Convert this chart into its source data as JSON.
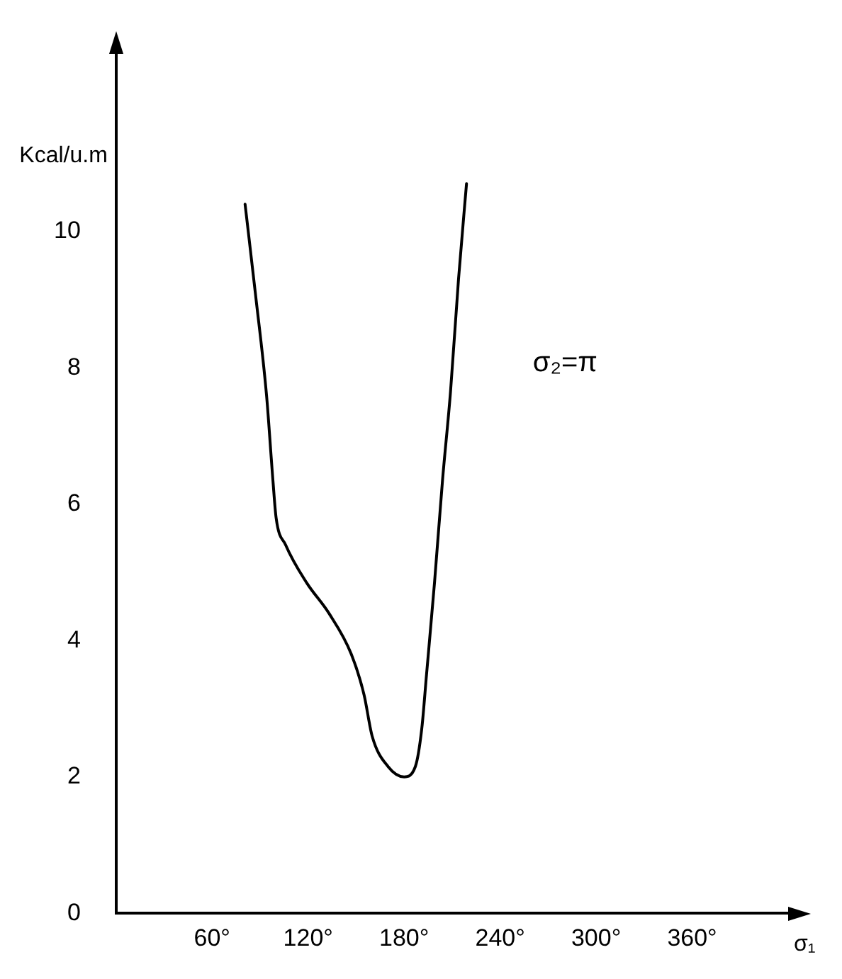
{
  "chart_data": {
    "type": "line",
    "xlabel": "σ₁",
    "ylabel": "Kcal/u.m",
    "annotations": [
      "σ₂=π"
    ],
    "xlim": [
      0,
      420
    ],
    "ylim": [
      0,
      12.6
    ],
    "xticks": [
      {
        "value": 60,
        "label": "60°"
      },
      {
        "value": 120,
        "label": "120°"
      },
      {
        "value": 180,
        "label": "180°"
      },
      {
        "value": 240,
        "label": "240°"
      },
      {
        "value": 300,
        "label": "300°"
      },
      {
        "value": 360,
        "label": "360°"
      }
    ],
    "yticks": [
      0,
      2,
      4,
      6,
      8,
      10
    ],
    "grid": false,
    "legend": false,
    "marker": "none",
    "line_style": "solid",
    "series": [
      {
        "color": "#000000",
        "x": [
          80.6,
          87,
          94,
          98,
          100,
          106,
          119,
          133,
          147,
          155,
          160,
          170,
          180,
          187,
          191,
          194,
          199,
          204,
          209,
          214,
          219
        ],
        "values": [
          10.4,
          9.1,
          7.6,
          6.35,
          5.8,
          5.4,
          4.85,
          4.4,
          3.8,
          3.2,
          2.6,
          2.15,
          2.0,
          2.15,
          2.7,
          3.5,
          4.85,
          6.35,
          7.65,
          9.3,
          10.7
        ]
      }
    ]
  }
}
